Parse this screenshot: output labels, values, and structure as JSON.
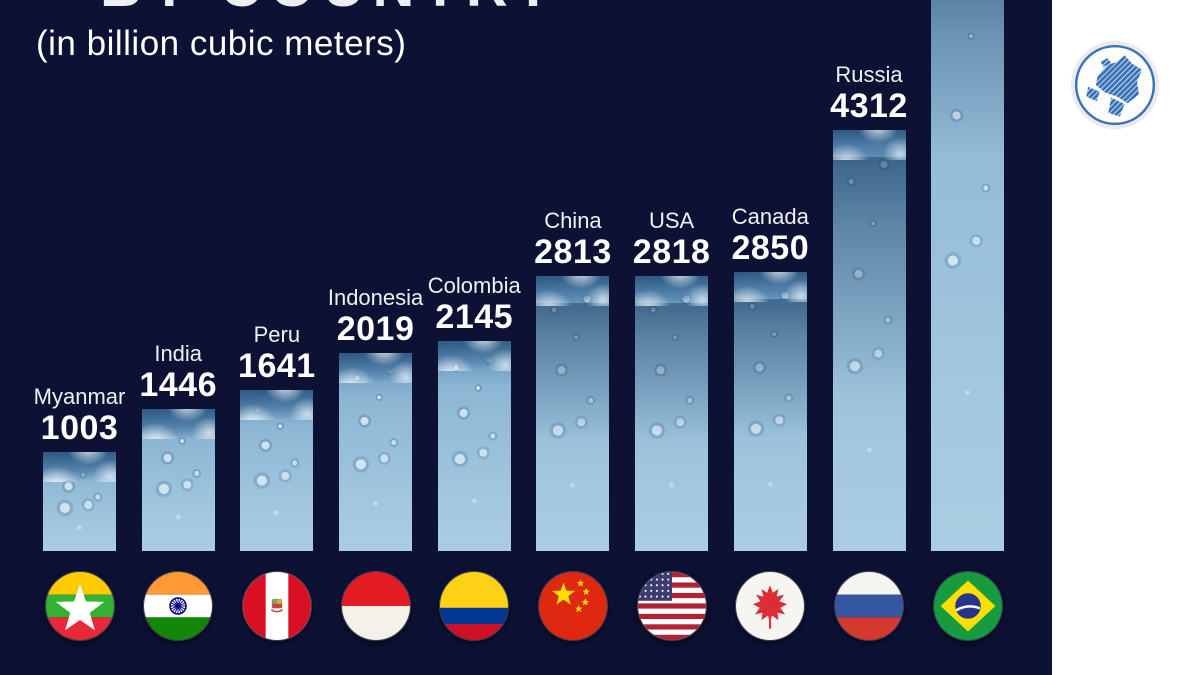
{
  "page": {
    "background_color": "#ffffff",
    "chart_background_color": "#0d1134"
  },
  "header": {
    "title_clipped": "BY COUNTRY",
    "subtitle": "(in billion cubic meters)"
  },
  "chart_data": {
    "type": "bar",
    "title": "BY COUNTRY (top of title cropped out of frame)",
    "subtitle": "(in billion cubic meters)",
    "unit": "billion cubic meters",
    "categories": [
      "Myanmar",
      "India",
      "Peru",
      "Indonesia",
      "Colombia",
      "China",
      "USA",
      "Canada",
      "Russia",
      "Brazil"
    ],
    "values": [
      1003,
      1446,
      1641,
      2019,
      2145,
      2813,
      2818,
      2850,
      4312,
      null
    ],
    "notes": "Bars are ascending left to right; rightmost bar (Brazil flag) extends beyond the top edge of the image so its label and value are not visible.",
    "bar_color": "#8db6d4",
    "background": "#0d1134",
    "legend": "none",
    "grid": false
  },
  "countries": [
    {
      "name": "Myanmar",
      "value": "1003",
      "flag": "myanmar-flag-icon"
    },
    {
      "name": "India",
      "value": "1446",
      "flag": "india-flag-icon"
    },
    {
      "name": "Peru",
      "value": "1641",
      "flag": "peru-flag-icon"
    },
    {
      "name": "Indonesia",
      "value": "2019",
      "flag": "indonesia-flag-icon"
    },
    {
      "name": "Colombia",
      "value": "2145",
      "flag": "colombia-flag-icon"
    },
    {
      "name": "China",
      "value": "2813",
      "flag": "china-flag-icon"
    },
    {
      "name": "USA",
      "value": "2818",
      "flag": "usa-flag-icon"
    },
    {
      "name": "Canada",
      "value": "2850",
      "flag": "canada-flag-icon"
    },
    {
      "name": "Russia",
      "value": "4312",
      "flag": "russia-flag-icon"
    },
    {
      "name": "",
      "value": "",
      "flag": "brazil-flag-icon"
    }
  ],
  "logo": {
    "icon": "globe-logo-icon",
    "accent_color": "#3a74b8"
  }
}
